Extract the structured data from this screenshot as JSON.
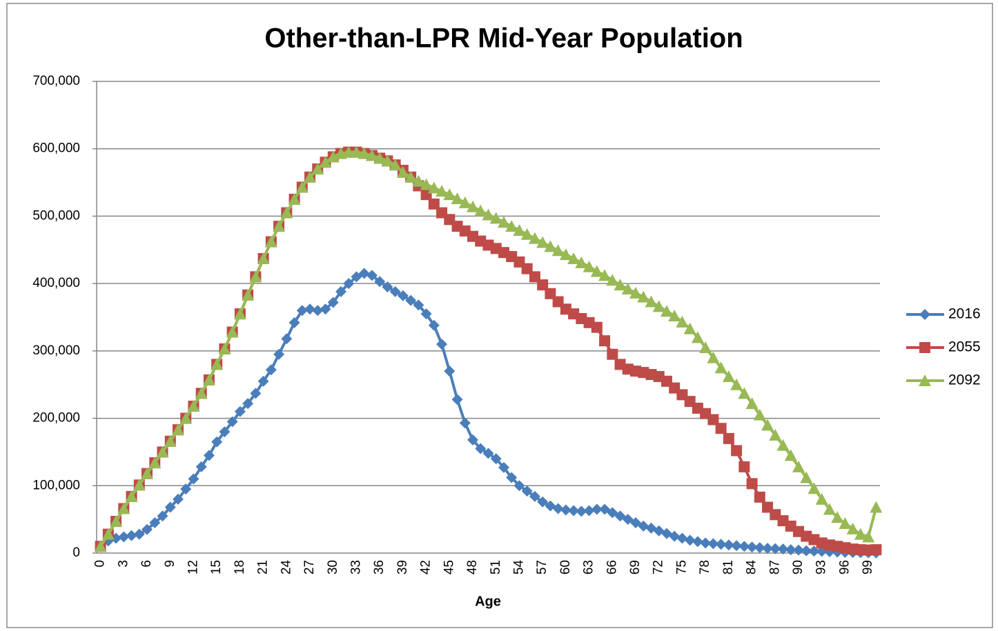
{
  "chart_data": {
    "type": "line",
    "title": "Other-than-LPR Mid-Year Population",
    "x_label": "Age",
    "categories": [
      "0",
      null,
      null,
      "3",
      null,
      null,
      "6",
      null,
      null,
      "9",
      null,
      null,
      "12",
      null,
      null,
      "15",
      null,
      null,
      "18",
      null,
      null,
      "21",
      null,
      null,
      "24",
      null,
      null,
      "27",
      null,
      null,
      "30",
      null,
      null,
      "33",
      null,
      null,
      "36",
      null,
      null,
      "39",
      null,
      null,
      "42",
      null,
      null,
      "45",
      null,
      null,
      "48",
      null,
      null,
      "51",
      null,
      null,
      "54",
      null,
      null,
      "57",
      null,
      null,
      "60",
      null,
      null,
      "63",
      null,
      null,
      "66",
      null,
      null,
      "69",
      null,
      null,
      "72",
      null,
      null,
      "75",
      null,
      null,
      "78",
      null,
      null,
      "81",
      null,
      null,
      "84",
      null,
      null,
      "87",
      null,
      null,
      "90",
      null,
      null,
      "93",
      null,
      null,
      "96",
      null,
      null,
      "99",
      null
    ],
    "ylim": [
      0,
      700000
    ],
    "yticks": [
      0,
      {
        "value": 100000,
        "label": "100,000"
      },
      {
        "value": 200000,
        "label": "200,000"
      },
      {
        "value": 300000,
        "label": "300,000"
      },
      {
        "value": 400000,
        "label": "400,000"
      },
      {
        "value": 500000,
        "label": "500,000"
      },
      {
        "value": 600000,
        "label": "600,000"
      },
      {
        "value": 700000,
        "label": "700,000"
      }
    ],
    "grid": true,
    "legend": "right",
    "series": [
      {
        "name": "2016",
        "color": "#4a7ebb",
        "marker": "diamond",
        "values": [
          10000,
          18000,
          22000,
          24000,
          26000,
          28000,
          35000,
          45000,
          55000,
          68000,
          80000,
          95000,
          110000,
          128000,
          145000,
          165000,
          180000,
          195000,
          210000,
          222000,
          237000,
          255000,
          272000,
          295000,
          318000,
          342000,
          360000,
          362000,
          360000,
          362000,
          372000,
          388000,
          400000,
          410000,
          415000,
          412000,
          403000,
          395000,
          388000,
          382000,
          375000,
          368000,
          355000,
          338000,
          310000,
          270000,
          228000,
          193000,
          168000,
          155000,
          148000,
          140000,
          127000,
          112000,
          100000,
          92000,
          84000,
          76000,
          70000,
          66000,
          64000,
          63000,
          62000,
          63000,
          65000,
          65000,
          60000,
          55000,
          50000,
          45000,
          40000,
          37000,
          33000,
          29000,
          25000,
          22000,
          19000,
          17000,
          15000,
          14000,
          13000,
          12000,
          11000,
          10000,
          9000,
          8000,
          7000,
          6500,
          6000,
          5000,
          4500,
          3500,
          3000,
          2500,
          2000,
          1500,
          1000,
          800,
          600,
          400,
          300
        ]
      },
      {
        "name": "2055",
        "color": "#be4b48",
        "marker": "square",
        "values": [
          10000,
          28000,
          47000,
          66000,
          84000,
          101000,
          118000,
          134000,
          150000,
          166000,
          183000,
          200000,
          218000,
          237000,
          257000,
          280000,
          303000,
          328000,
          355000,
          383000,
          410000,
          437000,
          462000,
          485000,
          505000,
          525000,
          543000,
          558000,
          570000,
          580000,
          588000,
          593000,
          595000,
          595000,
          593000,
          590000,
          586000,
          582000,
          576000,
          568000,
          558000,
          545000,
          532000,
          518000,
          505000,
          495000,
          485000,
          478000,
          470000,
          463000,
          457000,
          452000,
          446000,
          440000,
          432000,
          422000,
          410000,
          398000,
          385000,
          373000,
          362000,
          355000,
          348000,
          342000,
          335000,
          315000,
          295000,
          280000,
          273000,
          270000,
          268000,
          265000,
          262000,
          255000,
          245000,
          235000,
          225000,
          215000,
          207000,
          198000,
          185000,
          170000,
          152000,
          128000,
          103000,
          83000,
          68000,
          57000,
          48000,
          40000,
          32000,
          25000,
          20000,
          15000,
          12000,
          10000,
          8000,
          6000,
          5000,
          4500,
          5000
        ]
      },
      {
        "name": "2092",
        "color": "#98b954",
        "marker": "triangle",
        "values": [
          10000,
          28000,
          47000,
          66000,
          84000,
          101000,
          118000,
          134000,
          150000,
          166000,
          183000,
          200000,
          218000,
          237000,
          257000,
          280000,
          303000,
          328000,
          355000,
          383000,
          410000,
          437000,
          462000,
          485000,
          505000,
          525000,
          543000,
          558000,
          570000,
          580000,
          588000,
          593000,
          595000,
          595000,
          593000,
          590000,
          586000,
          582000,
          576000,
          565000,
          558000,
          552000,
          547000,
          542000,
          537000,
          532000,
          526000,
          520000,
          514000,
          508000,
          502000,
          497000,
          491000,
          485000,
          479000,
          473000,
          467000,
          461000,
          455000,
          449000,
          443000,
          437000,
          431000,
          425000,
          418000,
          412000,
          405000,
          398000,
          392000,
          386000,
          380000,
          373000,
          366000,
          359000,
          352000,
          343000,
          333000,
          320000,
          305000,
          290000,
          275000,
          262000,
          250000,
          237000,
          222000,
          205000,
          190000,
          175000,
          160000,
          145000,
          128000,
          112000,
          96000,
          80000,
          65000,
          53000,
          44000,
          36000,
          28000,
          24000,
          68000
        ]
      }
    ]
  }
}
